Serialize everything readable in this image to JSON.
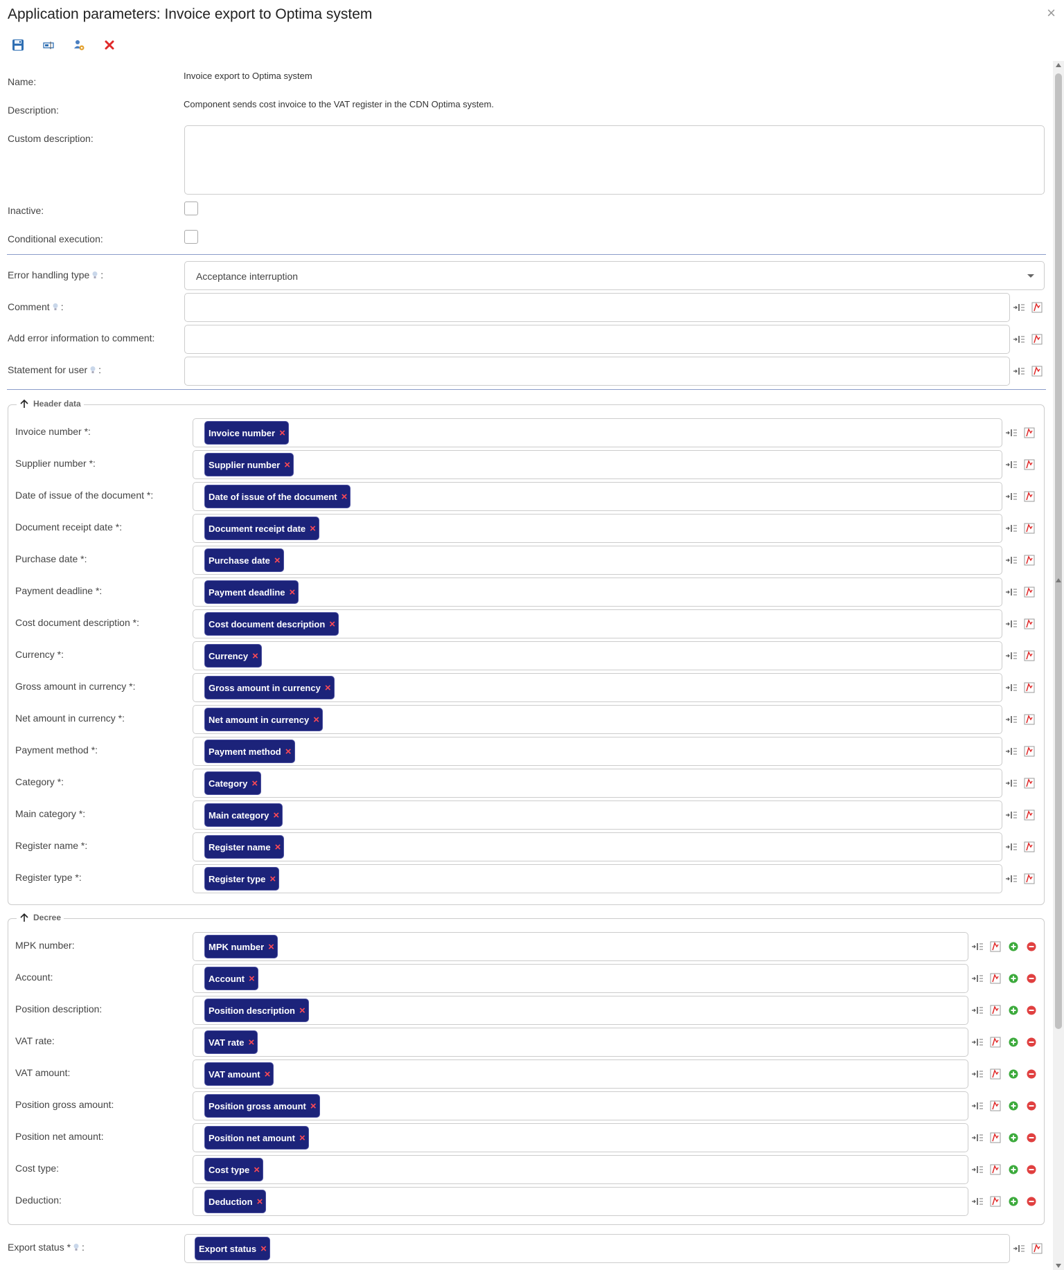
{
  "window": {
    "title": "Application parameters: Invoice export to Optima system",
    "close_symbol": "×"
  },
  "toolbar": {
    "buttons": [
      {
        "name": "save-button",
        "icon": "floppy-disk-icon"
      },
      {
        "name": "rename-button",
        "icon": "text-field-icon"
      },
      {
        "name": "settings-button",
        "icon": "user-gear-icon"
      },
      {
        "name": "cancel-button",
        "icon": "red-x-icon"
      }
    ]
  },
  "general": {
    "name_label": "Name:",
    "name_value": "Invoice export to Optima system",
    "description_label": "Description:",
    "description_value": "Component sends cost invoice to the VAT register in the CDN Optima system.",
    "custom_description_label": "Custom description:",
    "custom_description_value": "",
    "inactive_label": "Inactive:",
    "conditional_label": "Conditional execution:"
  },
  "error_handling": {
    "type_label": "Error handling type",
    "type_value": "Acceptance interruption",
    "comment_label": "Comment",
    "add_error_label": "Add error information to comment:",
    "statement_label": "Statement for user"
  },
  "header_data": {
    "legend": "Header data",
    "fields": [
      {
        "label": "Invoice number *:",
        "chip": "Invoice number"
      },
      {
        "label": "Supplier number *:",
        "chip": "Supplier number"
      },
      {
        "label": "Date of issue of the document *:",
        "chip": "Date of issue of the document"
      },
      {
        "label": "Document receipt date *:",
        "chip": "Document receipt date"
      },
      {
        "label": "Purchase date *:",
        "chip": "Purchase date"
      },
      {
        "label": "Payment deadline *:",
        "chip": "Payment deadline"
      },
      {
        "label": "Cost document description *:",
        "chip": "Cost document description"
      },
      {
        "label": "Currency *:",
        "chip": "Currency"
      },
      {
        "label": "Gross amount in currency *:",
        "chip": "Gross amount in currency"
      },
      {
        "label": "Net amount in currency *:",
        "chip": "Net amount in currency"
      },
      {
        "label": "Payment method *:",
        "chip": "Payment method"
      },
      {
        "label": "Category *:",
        "chip": "Category"
      },
      {
        "label": "Main category *:",
        "chip": "Main category"
      },
      {
        "label": "Register name *:",
        "chip": "Register name"
      },
      {
        "label": "Register type *:",
        "chip": "Register type"
      }
    ]
  },
  "decree": {
    "legend": "Decree",
    "fields": [
      {
        "label": "MPK number:",
        "chip": "MPK number"
      },
      {
        "label": "Account:",
        "chip": "Account"
      },
      {
        "label": "Position description:",
        "chip": "Position description"
      },
      {
        "label": "VAT rate:",
        "chip": "VAT rate"
      },
      {
        "label": "VAT amount:",
        "chip": "VAT amount"
      },
      {
        "label": "Position gross amount:",
        "chip": "Position gross amount"
      },
      {
        "label": "Position net amount:",
        "chip": "Position net amount"
      },
      {
        "label": "Cost type:",
        "chip": "Cost type"
      },
      {
        "label": "Deduction:",
        "chip": "Deduction"
      }
    ]
  },
  "export_status": {
    "label": "Export status *",
    "chip": "Export status"
  },
  "chip_remove_symbol": "×",
  "colors": {
    "chip_bg": "#1c237a",
    "chip_remove": "#ff4a55",
    "separator": "#8a9cc9",
    "add_green": "#3caa3c",
    "remove_red": "#e04040"
  }
}
